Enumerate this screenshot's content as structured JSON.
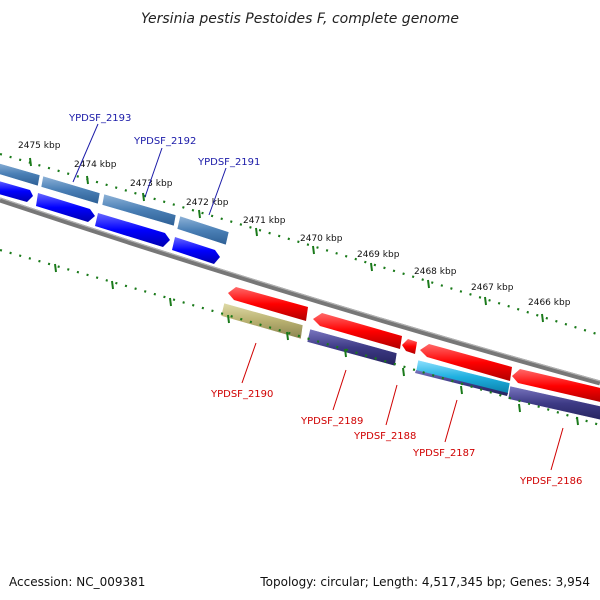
{
  "title": "Yersinia pestis Pestoides F, complete genome",
  "footer": {
    "accession": "Accession: NC_009381",
    "topology": "Topology: circular; Length: 4,517,345 bp; Genes: 3,954"
  },
  "scale_labels": [
    "2475 kbp",
    "2474 kbp",
    "2473 kbp",
    "2472 kbp",
    "2471 kbp",
    "2470 kbp",
    "2469 kbp",
    "2468 kbp",
    "2467 kbp",
    "2466 kbp"
  ],
  "forward_genes": [
    "YPDSF_2193",
    "YPDSF_2192",
    "YPDSF_2191"
  ],
  "reverse_genes": [
    "YPDSF_2190",
    "YPDSF_2189",
    "YPDSF_2188",
    "YPDSF_2187",
    "YPDSF_2186"
  ],
  "colors": {
    "forward_cds": "#0000ff",
    "forward_gene": "#4a7fb5",
    "reverse_cds": "#ff0000",
    "reverse_gene_navy": "#3d3a85",
    "reverse_gene_olive": "#b8b070",
    "reverse_gene_cyan": "#1fb0e0",
    "backbone": "#777777",
    "ticks": "#1a7a1a",
    "forward_label": "#1a1aa8",
    "reverse_label": "#d00000"
  }
}
